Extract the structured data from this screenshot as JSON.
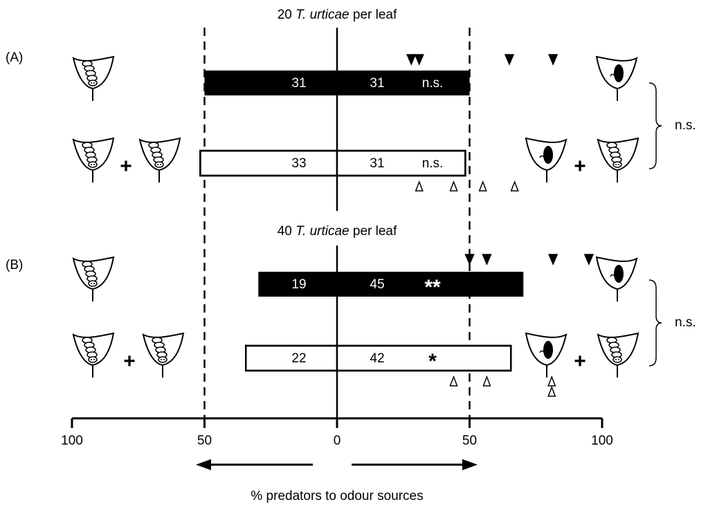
{
  "chart_data": {
    "type": "diverging_bar",
    "xlim": [
      -100,
      100
    ],
    "xticks": [
      {
        "value": -100,
        "label": "100"
      },
      {
        "value": -50,
        "label": "50"
      },
      0,
      50,
      100
    ],
    "xlabel": "% predators to odour sources",
    "reference_lines": [
      -50,
      0,
      50
    ],
    "panels": [
      {
        "label": "(A)",
        "title_count": "20",
        "title_species": "T. urticae",
        "title_suffix": "per leaf",
        "comparison_label": "n.s.",
        "combination_symbol": "+",
        "bars": [
          {
            "style": "filled",
            "color": "#000000",
            "left_count": 31,
            "right_count": 31,
            "left_percent": 50,
            "right_percent": 50,
            "significance": "n.s.",
            "replicates": [
              28,
              31,
              65,
              81.5
            ]
          },
          {
            "style": "open",
            "color": "#ffffff",
            "left_count": 33,
            "right_count": 31,
            "left_percent": 51.6,
            "right_percent": 48.4,
            "significance": "n.s.",
            "replicates": [
              31,
              44,
              55,
              67
            ]
          }
        ]
      },
      {
        "label": "(B)",
        "title_count": "40",
        "title_species": "T. urticae",
        "title_suffix": "per leaf",
        "comparison_label": "n.s.",
        "combination_symbol": "+",
        "bars": [
          {
            "style": "filled",
            "color": "#000000",
            "left_count": 19,
            "right_count": 45,
            "left_percent": 29.7,
            "right_percent": 70.3,
            "significance": "**",
            "replicates": [
              50,
              56.5,
              81.5,
              95
            ]
          },
          {
            "style": "open",
            "color": "#ffffff",
            "left_count": 22,
            "right_count": 42,
            "left_percent": 34.4,
            "right_percent": 65.6,
            "significance": "*",
            "replicates": [
              44,
              56.5,
              81,
              81
            ]
          }
        ]
      }
    ]
  }
}
